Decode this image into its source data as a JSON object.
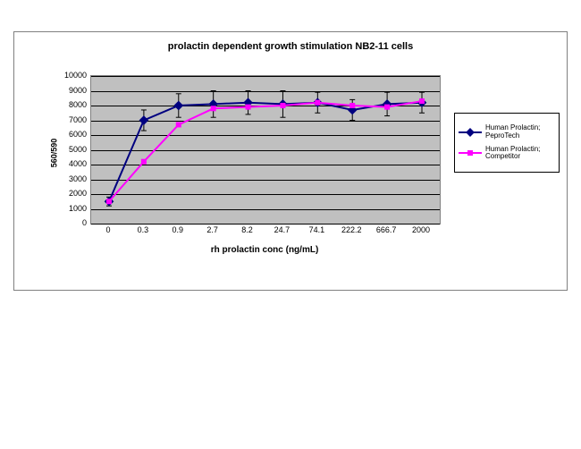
{
  "chart": {
    "type": "line",
    "title": "prolactin dependent growth stimulation NB2-11 cells",
    "title_fontsize": 11,
    "y_axis": {
      "label": "560/590",
      "min": 0,
      "max": 10000,
      "tick_step": 1000,
      "ticks": [
        0,
        1000,
        2000,
        3000,
        4000,
        5000,
        6000,
        7000,
        8000,
        9000,
        10000
      ],
      "label_fontsize": 9
    },
    "x_axis": {
      "label": "rh prolactin conc (ng/mL)",
      "categories": [
        "0",
        "0.3",
        "0.9",
        "2.7",
        "8.2",
        "24.7",
        "74.1",
        "222.2",
        "666.7",
        "2000"
      ],
      "label_fontsize": 9
    },
    "plot": {
      "background_color": "#c0c0c0",
      "grid_color": "#000000",
      "border_color": "#808080"
    },
    "series": [
      {
        "name": "Human Prolactin; PeproTech",
        "color": "#000080",
        "marker": "diamond",
        "marker_size": 6,
        "line_width": 2,
        "values": [
          1500,
          7000,
          8000,
          8100,
          8200,
          8100,
          8200,
          7700,
          8100,
          8200
        ],
        "error": [
          300,
          700,
          800,
          900,
          800,
          900,
          700,
          700,
          800,
          700
        ]
      },
      {
        "name": "Human Prolactin; Competitor",
        "color": "#ff00ff",
        "marker": "square",
        "marker_size": 5,
        "line_width": 2,
        "values": [
          1500,
          4200,
          6700,
          7800,
          7900,
          8000,
          8200,
          8000,
          7900,
          8300
        ],
        "error": [
          0,
          0,
          0,
          0,
          0,
          0,
          0,
          0,
          0,
          0
        ]
      }
    ],
    "legend": {
      "position": "right",
      "border_color": "#000000",
      "background_color": "#ffffff",
      "fontsize": 8
    }
  }
}
